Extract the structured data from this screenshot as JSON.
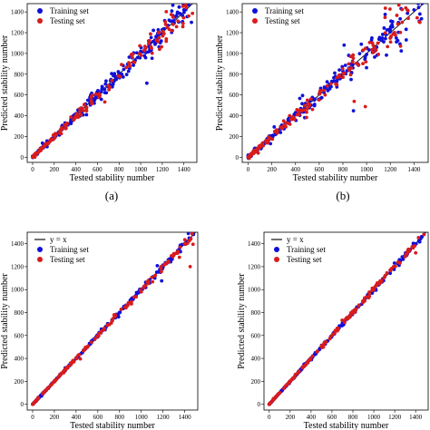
{
  "colors": {
    "training": "#1010d8",
    "testing": "#d81c1c",
    "line": "#111111"
  },
  "panels": [
    {
      "caption": "(a)",
      "xlabel": "Tested stability number",
      "ylabel": "Predicted stability number",
      "legend": {
        "placement": "top-left",
        "show_line": false,
        "line_label": "y = x",
        "training_label": "Training set",
        "testing_label": "Testing set"
      },
      "noise": 0.045,
      "outlier_rate": 0.06
    },
    {
      "caption": "(b)",
      "xlabel": "Tested stability number",
      "ylabel": "Predicted stability number",
      "legend": {
        "placement": "top-left",
        "show_line": false,
        "line_label": "y = x",
        "training_label": "Training set",
        "testing_label": "Testing set"
      },
      "noise": 0.055,
      "outlier_rate": 0.1
    },
    {
      "caption": "",
      "xlabel": "Tested stability number",
      "ylabel": "Predicted stability number",
      "legend": {
        "placement": "top-left",
        "show_line": true,
        "line_label": "y = x",
        "training_label": "Training set",
        "testing_label": "Testing set"
      },
      "noise": 0.01,
      "outlier_rate": 0.05
    },
    {
      "caption": "",
      "xlabel": "Tested stability number",
      "ylabel": "Predicted stability number",
      "legend": {
        "placement": "top-left",
        "show_line": true,
        "line_label": "y = x",
        "training_label": "Training set",
        "testing_label": "Testing set"
      },
      "noise": 0.01,
      "outlier_rate": 0.04
    }
  ],
  "chart_data": [
    {
      "type": "scatter",
      "panel": "(a)",
      "xlim": [
        -50,
        1520
      ],
      "ylim": [
        -50,
        1480
      ],
      "x_ticks": [
        0,
        200,
        400,
        600,
        800,
        1000,
        1200,
        1400
      ],
      "y_ticks": [
        0,
        200,
        400,
        600,
        800,
        1000,
        1200,
        1400
      ],
      "series": [
        {
          "name": "Training set",
          "points": [
            [
              0,
              10
            ],
            [
              80,
              90
            ],
            [
              200,
              210
            ],
            [
              300,
              330
            ],
            [
              400,
              420
            ],
            [
              600,
              620
            ],
            [
              800,
              810
            ],
            [
              1000,
              1020
            ],
            [
              1200,
              1230
            ],
            [
              1300,
              1350
            ],
            [
              1400,
              1420
            ],
            [
              1470,
              1300
            ]
          ]
        },
        {
          "name": "Testing set",
          "points": [
            [
              20,
              0
            ],
            [
              150,
              140
            ],
            [
              250,
              240
            ],
            [
              380,
              360
            ],
            [
              500,
              480
            ],
            [
              700,
              690
            ],
            [
              900,
              880
            ],
            [
              1100,
              1050
            ],
            [
              1300,
              1280
            ]
          ]
        }
      ]
    },
    {
      "type": "scatter",
      "panel": "(b)",
      "xlim": [
        -50,
        1520
      ],
      "ylim": [
        -50,
        1480
      ],
      "x_ticks": [
        0,
        200,
        400,
        600,
        800,
        1000,
        1200,
        1400
      ],
      "y_ticks": [
        0,
        200,
        400,
        600,
        800,
        1000,
        1200,
        1400
      ],
      "series": [
        {
          "name": "Training set",
          "points": [
            [
              0,
              20
            ],
            [
              100,
              110
            ],
            [
              250,
              240
            ],
            [
              400,
              430
            ],
            [
              600,
              610
            ],
            [
              800,
              830
            ],
            [
              1000,
              990
            ],
            [
              1200,
              1230
            ],
            [
              1400,
              1420
            ],
            [
              1450,
              1380
            ]
          ]
        },
        {
          "name": "Testing set",
          "points": [
            [
              10,
              0
            ],
            [
              150,
              160
            ],
            [
              300,
              350
            ],
            [
              500,
              550
            ],
            [
              650,
              600
            ],
            [
              850,
              900
            ],
            [
              1050,
              1100
            ],
            [
              1300,
              1300
            ],
            [
              1450,
              1300
            ]
          ]
        }
      ]
    },
    {
      "type": "scatter",
      "panel": "(c)",
      "xlim": [
        -50,
        1520
      ],
      "ylim": [
        -50,
        1500
      ],
      "x_ticks": [
        0,
        200,
        400,
        600,
        800,
        1000,
        1200,
        1400
      ],
      "y_ticks": [
        0,
        200,
        400,
        600,
        800,
        1000,
        1200,
        1400
      ],
      "series": [
        {
          "name": "y = x",
          "points": [
            [
              0,
              0
            ],
            [
              1480,
              1480
            ]
          ]
        },
        {
          "name": "Training set",
          "points": [
            [
              0,
              0
            ],
            [
              200,
              200
            ],
            [
              400,
              400
            ],
            [
              600,
              600
            ],
            [
              800,
              800
            ],
            [
              1000,
              1000
            ],
            [
              1200,
              1200
            ],
            [
              1400,
              1400
            ],
            [
              1480,
              1480
            ]
          ]
        },
        {
          "name": "Testing set",
          "points": [
            [
              50,
              60
            ],
            [
              300,
              310
            ],
            [
              500,
              500
            ],
            [
              750,
              780
            ],
            [
              1000,
              980
            ],
            [
              1300,
              1300
            ],
            [
              1450,
              1200
            ]
          ]
        }
      ]
    },
    {
      "type": "scatter",
      "panel": "(d)",
      "xlim": [
        -50,
        1520
      ],
      "ylim": [
        -50,
        1500
      ],
      "x_ticks": [
        0,
        200,
        400,
        600,
        800,
        1000,
        1200,
        1400
      ],
      "y_ticks": [
        0,
        200,
        400,
        600,
        800,
        1000,
        1200,
        1400
      ],
      "series": [
        {
          "name": "y = x",
          "points": [
            [
              0,
              0
            ],
            [
              1480,
              1480
            ]
          ]
        },
        {
          "name": "Training set",
          "points": [
            [
              0,
              0
            ],
            [
              200,
              200
            ],
            [
              400,
              400
            ],
            [
              600,
              600
            ],
            [
              800,
              800
            ],
            [
              1000,
              1000
            ],
            [
              1200,
              1200
            ],
            [
              1400,
              1400
            ],
            [
              1480,
              1480
            ]
          ]
        },
        {
          "name": "Testing set",
          "points": [
            [
              40,
              50
            ],
            [
              250,
              260
            ],
            [
              500,
              510
            ],
            [
              750,
              760
            ],
            [
              1000,
              1000
            ],
            [
              1250,
              1230
            ],
            [
              1400,
              1320
            ]
          ]
        }
      ]
    }
  ]
}
